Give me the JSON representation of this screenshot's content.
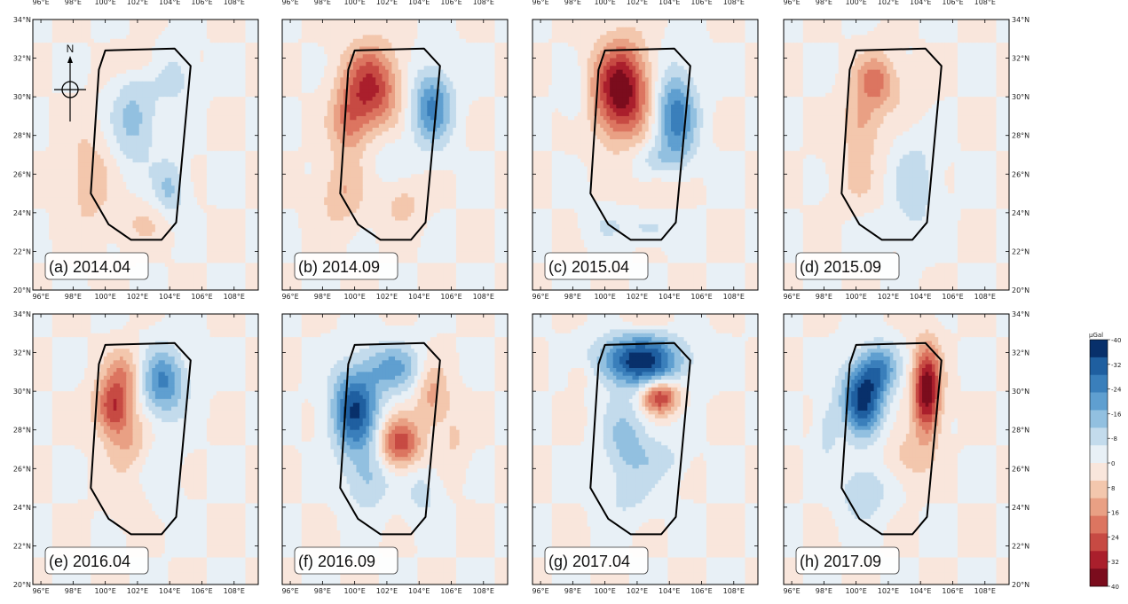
{
  "figure": {
    "longitude_ticks": [
      "96°E",
      "98°E",
      "100°E",
      "102°E",
      "104°E",
      "106°E",
      "108°E"
    ],
    "latitude_ticks": [
      "34°N",
      "32°N",
      "30°N",
      "28°N",
      "26°N",
      "24°N",
      "22°N",
      "20°N"
    ],
    "north_arrow_label": "N",
    "panels": [
      {
        "label": "(a) 2014.04",
        "anomalies": [
          {
            "lon": 101.8,
            "lat": 28.8,
            "amp": -14,
            "sx": 1.0,
            "sy": 1.6
          },
          {
            "lon": 104.0,
            "lat": 25.2,
            "amp": -13,
            "sx": 0.7,
            "sy": 1.1
          },
          {
            "lon": 104.3,
            "lat": 31.0,
            "amp": -9,
            "sx": 0.8,
            "sy": 1.0
          },
          {
            "lon": 99.0,
            "lat": 25.8,
            "amp": 9,
            "sx": 1.0,
            "sy": 2.0
          },
          {
            "lon": 102.0,
            "lat": 31.8,
            "amp": 6,
            "sx": 1.0,
            "sy": 0.6
          },
          {
            "lon": 102.5,
            "lat": 23.5,
            "amp": 6,
            "sx": 1.4,
            "sy": 0.8
          }
        ]
      },
      {
        "label": "(b) 2014.09",
        "anomalies": [
          {
            "lon": 101.0,
            "lat": 30.5,
            "amp": 30,
            "sx": 1.2,
            "sy": 1.5
          },
          {
            "lon": 99.6,
            "lat": 28.6,
            "amp": 15,
            "sx": 0.8,
            "sy": 1.2
          },
          {
            "lon": 104.8,
            "lat": 29.5,
            "amp": -24,
            "sx": 0.9,
            "sy": 1.4
          },
          {
            "lon": 99.2,
            "lat": 25.0,
            "amp": 11,
            "sx": 1.0,
            "sy": 1.2
          },
          {
            "lon": 103.0,
            "lat": 24.5,
            "amp": 8,
            "sx": 0.9,
            "sy": 0.9
          },
          {
            "lon": 102.2,
            "lat": 27.0,
            "amp": -4,
            "sx": 1.0,
            "sy": 1.0
          }
        ]
      },
      {
        "label": "(c) 2015.04",
        "anomalies": [
          {
            "lon": 101.0,
            "lat": 30.3,
            "amp": 40,
            "sx": 1.2,
            "sy": 1.7
          },
          {
            "lon": 104.4,
            "lat": 29.0,
            "amp": -26,
            "sx": 0.9,
            "sy": 1.7
          },
          {
            "lon": 103.0,
            "lat": 26.8,
            "amp": -6,
            "sx": 1.2,
            "sy": 0.6
          },
          {
            "lon": 103.5,
            "lat": 25.2,
            "amp": 6,
            "sx": 1.0,
            "sy": 0.6
          },
          {
            "lon": 102.8,
            "lat": 23.2,
            "amp": -8,
            "sx": 1.0,
            "sy": 0.5
          },
          {
            "lon": 100.0,
            "lat": 23.3,
            "amp": -5,
            "sx": 1.0,
            "sy": 0.6
          },
          {
            "lon": 98.2,
            "lat": 30.0,
            "amp": -6,
            "sx": 0.6,
            "sy": 1.0
          }
        ]
      },
      {
        "label": "(d) 2015.09",
        "anomalies": [
          {
            "lon": 101.2,
            "lat": 30.8,
            "amp": 20,
            "sx": 0.9,
            "sy": 1.0
          },
          {
            "lon": 100.3,
            "lat": 28.7,
            "amp": 11,
            "sx": 0.8,
            "sy": 1.0
          },
          {
            "lon": 100.2,
            "lat": 26.0,
            "amp": 6,
            "sx": 1.2,
            "sy": 1.6
          },
          {
            "lon": 103.6,
            "lat": 25.5,
            "amp": -10,
            "sx": 1.0,
            "sy": 1.7
          },
          {
            "lon": 103.5,
            "lat": 30.0,
            "amp": 4,
            "sx": 0.8,
            "sy": 1.0
          },
          {
            "lon": 101.5,
            "lat": 23.2,
            "amp": -5,
            "sx": 1.2,
            "sy": 0.6
          }
        ]
      },
      {
        "label": "(e) 2016.04",
        "anomalies": [
          {
            "lon": 100.5,
            "lat": 29.2,
            "amp": 28,
            "sx": 0.8,
            "sy": 1.0
          },
          {
            "lon": 101.2,
            "lat": 31.0,
            "amp": 14,
            "sx": 0.8,
            "sy": 0.9
          },
          {
            "lon": 101.5,
            "lat": 27.3,
            "amp": 11,
            "sx": 1.0,
            "sy": 1.0
          },
          {
            "lon": 103.6,
            "lat": 30.5,
            "amp": -24,
            "sx": 1.0,
            "sy": 1.2
          },
          {
            "lon": 103.2,
            "lat": 26.0,
            "amp": -5,
            "sx": 1.0,
            "sy": 1.6
          },
          {
            "lon": 101.5,
            "lat": 24.5,
            "amp": 5,
            "sx": 1.0,
            "sy": 1.0
          }
        ]
      },
      {
        "label": "(f) 2016.09",
        "anomalies": [
          {
            "lon": 100.0,
            "lat": 29.0,
            "amp": -34,
            "sx": 1.0,
            "sy": 1.5
          },
          {
            "lon": 102.4,
            "lat": 31.2,
            "amp": -18,
            "sx": 1.3,
            "sy": 0.9
          },
          {
            "lon": 102.8,
            "lat": 27.3,
            "amp": 27,
            "sx": 0.9,
            "sy": 0.9
          },
          {
            "lon": 104.8,
            "lat": 29.8,
            "amp": 14,
            "sx": 0.7,
            "sy": 1.2
          },
          {
            "lon": 100.8,
            "lat": 25.5,
            "amp": -12,
            "sx": 1.0,
            "sy": 1.2
          },
          {
            "lon": 104.2,
            "lat": 24.8,
            "amp": -8,
            "sx": 0.8,
            "sy": 1.0
          },
          {
            "lon": 106.2,
            "lat": 27.5,
            "amp": 6,
            "sx": 0.6,
            "sy": 1.4
          }
        ]
      },
      {
        "label": "(g) 2017.04",
        "anomalies": [
          {
            "lon": 102.2,
            "lat": 31.6,
            "amp": -38,
            "sx": 1.8,
            "sy": 0.9
          },
          {
            "lon": 103.4,
            "lat": 29.7,
            "amp": 30,
            "sx": 0.8,
            "sy": 0.6
          },
          {
            "lon": 101.3,
            "lat": 27.5,
            "amp": -14,
            "sx": 1.0,
            "sy": 1.5
          },
          {
            "lon": 103.5,
            "lat": 26.5,
            "amp": -8,
            "sx": 1.0,
            "sy": 0.8
          },
          {
            "lon": 101.5,
            "lat": 24.5,
            "amp": -6,
            "sx": 1.2,
            "sy": 0.9
          },
          {
            "lon": 98.5,
            "lat": 31.0,
            "amp": 6,
            "sx": 0.6,
            "sy": 0.6
          },
          {
            "lon": 102.5,
            "lat": 33.7,
            "amp": 6,
            "sx": 1.2,
            "sy": 0.3
          }
        ]
      },
      {
        "label": "(h) 2017.09",
        "anomalies": [
          {
            "lon": 100.4,
            "lat": 29.6,
            "amp": -36,
            "sx": 0.9,
            "sy": 1.3
          },
          {
            "lon": 101.5,
            "lat": 31.2,
            "amp": -20,
            "sx": 0.8,
            "sy": 0.9
          },
          {
            "lon": 104.4,
            "lat": 30.0,
            "amp": 40,
            "sx": 0.6,
            "sy": 1.6
          },
          {
            "lon": 103.2,
            "lat": 26.5,
            "amp": 8,
            "sx": 1.0,
            "sy": 0.9
          },
          {
            "lon": 100.5,
            "lat": 24.8,
            "amp": -12,
            "sx": 1.0,
            "sy": 1.0
          },
          {
            "lon": 98.2,
            "lat": 28.0,
            "amp": -8,
            "sx": 0.5,
            "sy": 1.2
          }
        ]
      }
    ],
    "boundary_outline": [
      {
        "lon": 100.0,
        "lat": 32.4
      },
      {
        "lon": 104.3,
        "lat": 32.5
      },
      {
        "lon": 105.3,
        "lat": 31.6
      },
      {
        "lon": 104.4,
        "lat": 23.5
      },
      {
        "lon": 103.5,
        "lat": 22.6
      },
      {
        "lon": 101.6,
        "lat": 22.6
      },
      {
        "lon": 100.2,
        "lat": 23.4
      },
      {
        "lon": 99.1,
        "lat": 25.0
      },
      {
        "lon": 99.6,
        "lat": 31.4
      }
    ],
    "colorbar": {
      "unit": "μGal",
      "labels": [
        "-40",
        "-32",
        "-24",
        "-16",
        "-8",
        "0",
        "8",
        "16",
        "24",
        "32",
        "40"
      ],
      "colors": [
        "#08306b",
        "#1f5fa0",
        "#3a7fbb",
        "#5f9fd0",
        "#92c0e0",
        "#c3dbec",
        "#e8f0f6",
        "#f9e6dc",
        "#f3c7ad",
        "#e9a084",
        "#dc7560",
        "#c74a43",
        "#aa1f2c",
        "#7b0c1d"
      ]
    }
  }
}
